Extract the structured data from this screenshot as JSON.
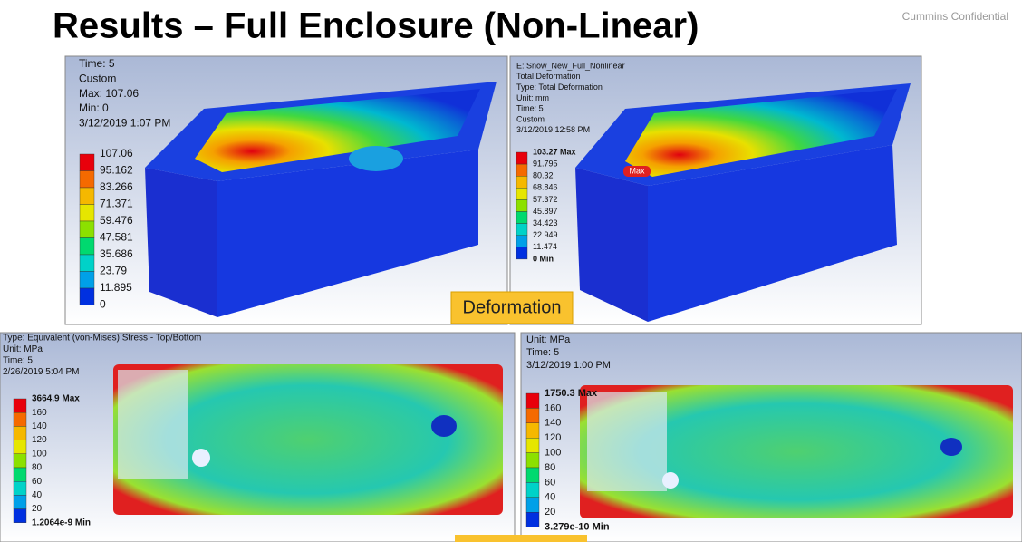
{
  "header": {
    "title": "Results – Full Enclosure (Non-Linear)",
    "confidential": "Cummins Confidential"
  },
  "panels": [
    {
      "info": [
        "Time: 5",
        "Custom",
        "Max: 107.06",
        "Min: 0",
        "3/12/2019 1:07 PM"
      ],
      "legend": [
        "107.06",
        "95.162",
        "83.266",
        "71.371",
        "59.476",
        "47.581",
        "35.686",
        "23.79",
        "11.895",
        "0"
      ]
    },
    {
      "info": [
        "E: Snow_New_Full_Nonlinear",
        "Total Deformation",
        "Type: Total Deformation",
        "Unit: mm",
        "Time: 5",
        "Custom",
        "3/12/2019 12:58 PM"
      ],
      "legend": [
        "103.27 Max",
        "91.795",
        "80.32",
        "68.846",
        "57.372",
        "45.897",
        "34.423",
        "22.949",
        "11.474",
        "0 Min"
      ],
      "marker": "Max"
    },
    {
      "info": [
        "Type: Equivalent (von-Mises) Stress - Top/Bottom",
        "Unit: MPa",
        "Time: 5",
        "2/26/2019 5:04 PM"
      ],
      "legend": [
        "3664.9 Max",
        "160",
        "140",
        "120",
        "100",
        "80",
        "60",
        "40",
        "20",
        "1.2064e-9 Min"
      ]
    },
    {
      "info": [
        "Unit: MPa",
        "Time: 5",
        "3/12/2019 1:00 PM"
      ],
      "legend": [
        "1750.3 Max",
        "160",
        "140",
        "120",
        "100",
        "80",
        "60",
        "40",
        "20",
        "3.279e-10 Min"
      ]
    }
  ],
  "section_label": "Deformation"
}
